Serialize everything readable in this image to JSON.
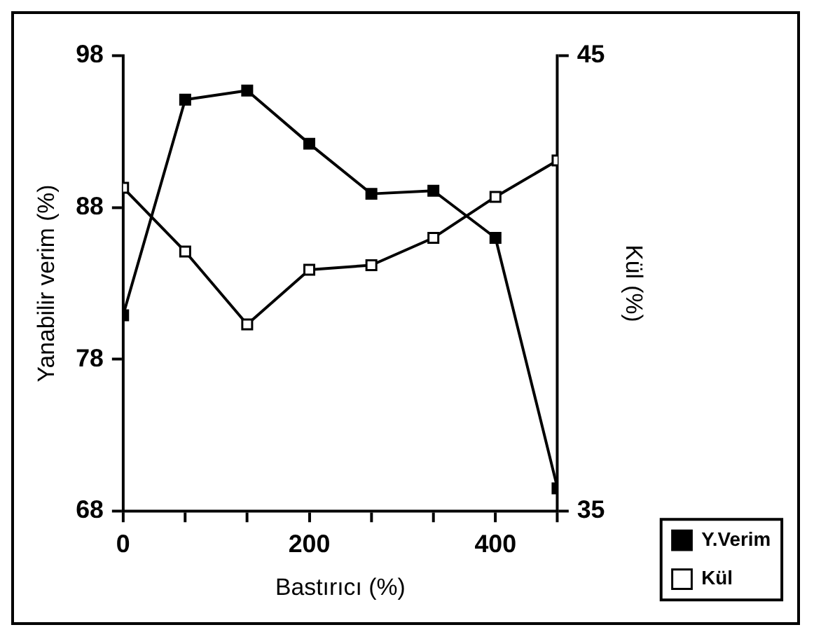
{
  "chart_data": {
    "type": "line",
    "xlabel": "Bastırıcı (%)",
    "ylabel": "Yanabilir verim (%)",
    "y2label": "Kül (%)",
    "x": [
      0,
      66.7,
      133.3,
      200,
      266.7,
      333.3,
      400,
      466.7
    ],
    "xlim": [
      0,
      466.7
    ],
    "xticks": [
      0,
      {
        "value": 66.7,
        "label": null
      },
      {
        "value": 133.3,
        "label": null
      },
      200,
      {
        "value": 266.7,
        "label": null
      },
      {
        "value": 333.3,
        "label": null
      },
      400,
      {
        "value": 466.7,
        "label": null
      }
    ],
    "ylim": [
      68,
      98
    ],
    "yticks": [
      68,
      78,
      88,
      98
    ],
    "y2lim": [
      35,
      45
    ],
    "y2ticks": [
      35,
      45
    ],
    "series": [
      {
        "name": "Y.Verim",
        "color": "#000000",
        "values": [
          80.9,
          95.1,
          95.7,
          92.2,
          88.9,
          89.1,
          86.0,
          69.5
        ]
      },
      {
        "name": "Kül",
        "color": "#000000",
        "axis": "y2",
        "values": [
          42.1,
          40.7,
          39.1,
          40.3,
          40.4,
          41.0,
          41.9,
          42.7
        ]
      }
    ],
    "legend": "bottom right",
    "marker": "square",
    "grid": false
  }
}
